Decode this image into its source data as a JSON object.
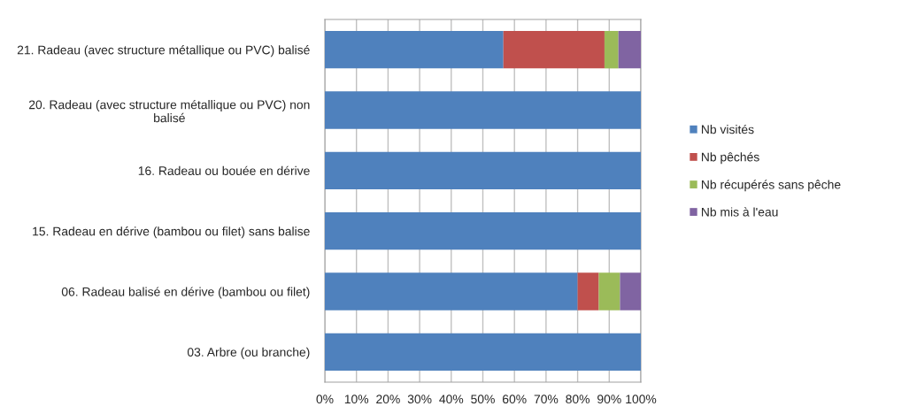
{
  "chart_data": {
    "type": "bar",
    "orientation": "horizontal",
    "stacked": true,
    "categories": [
      "21. Radeau (avec structure métallique ou PVC) balisé",
      "20. Radeau (avec structure métallique ou PVC) non balisé",
      "16. Radeau ou bouée en dérive",
      "15. Radeau en dérive (bambou ou filet) sans balise",
      "06. Radeau balisé en dérive (bambou ou filet)",
      "03. Arbre (ou branche)"
    ],
    "series": [
      {
        "name": "Nb visités",
        "color": "#4f81bd",
        "values": [
          56.5,
          100,
          100,
          100,
          80,
          100
        ]
      },
      {
        "name": "Nb pêchés",
        "color": "#c0504d",
        "values": [
          32,
          0,
          0,
          0,
          6.7,
          0
        ]
      },
      {
        "name": "Nb récupérés sans pêche",
        "color": "#9bbb59",
        "values": [
          4.4,
          0,
          0,
          0,
          6.7,
          0
        ]
      },
      {
        "name": "Nb mis à l'eau",
        "color": "#8064a2",
        "values": [
          7.1,
          0,
          0,
          0,
          6.6,
          0
        ]
      }
    ],
    "xlim": [
      0,
      100
    ],
    "xticks": [
      {
        "value": 0,
        "label": "0%"
      },
      {
        "value": 10,
        "label": "10%"
      },
      {
        "value": 20,
        "label": "20%"
      },
      {
        "value": 30,
        "label": "30%"
      },
      {
        "value": 40,
        "label": "40%"
      },
      {
        "value": 50,
        "label": "50%"
      },
      {
        "value": 60,
        "label": "60%"
      },
      {
        "value": 70,
        "label": "70%"
      },
      {
        "value": 80,
        "label": "80%"
      },
      {
        "value": 90,
        "label": "90%"
      },
      {
        "value": 100,
        "label": "100%"
      }
    ],
    "grid": "x",
    "legend": "right"
  }
}
